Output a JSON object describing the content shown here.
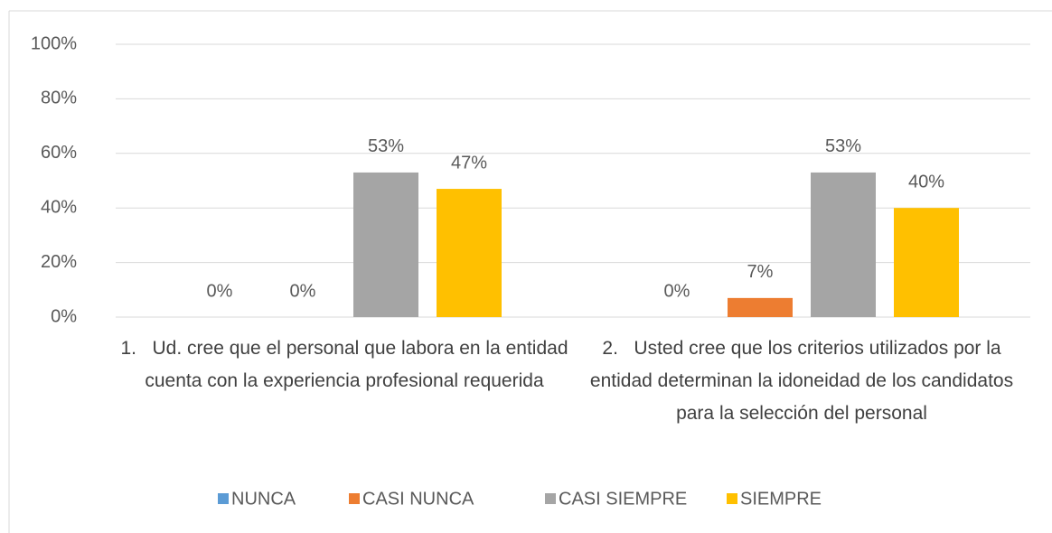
{
  "chart_data": {
    "type": "bar",
    "categories": [
      "1.   Ud. cree que el personal que labora en la entidad cuenta con la experiencia profesional requerida",
      "2.   Usted cree que los criterios utilizados por la entidad determinan la idoneidad de los candidatos para la selección del personal"
    ],
    "series": [
      {
        "name": "NUNCA",
        "color": "#5b9bd5",
        "values": [
          0,
          0
        ],
        "value_labels": [
          "0%",
          "0%"
        ]
      },
      {
        "name": "CASI NUNCA",
        "color": "#ed7d31",
        "values": [
          0,
          7
        ],
        "value_labels": [
          "0%",
          "7%"
        ]
      },
      {
        "name": "CASI SIEMPRE",
        "color": "#a5a5a5",
        "values": [
          53,
          53
        ],
        "value_labels": [
          "53%",
          "53%"
        ]
      },
      {
        "name": "SIEMPRE",
        "color": "#ffc000",
        "values": [
          47,
          40
        ],
        "value_labels": [
          "47%",
          "40%"
        ]
      }
    ],
    "ylim": [
      0,
      100
    ],
    "yticks": [
      {
        "value": 0,
        "label": "0%"
      },
      {
        "value": 20,
        "label": "20%"
      },
      {
        "value": 40,
        "label": "40%"
      },
      {
        "value": 60,
        "label": "60%"
      },
      {
        "value": 80,
        "label": "80%"
      },
      {
        "value": 100,
        "label": "100%"
      }
    ],
    "grid": true,
    "legend": "bottom"
  }
}
